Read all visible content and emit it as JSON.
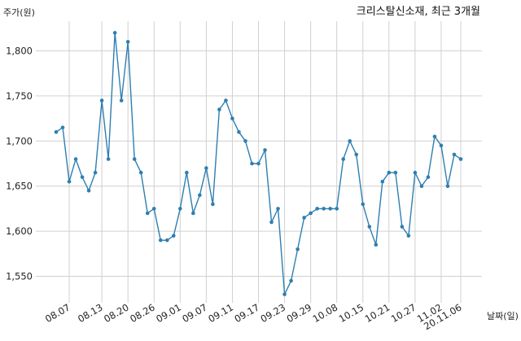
{
  "chart_data": {
    "type": "line",
    "title": "크리스탈신소재, 최근 3개월",
    "ylabel": "주가(원)",
    "xlabel": "날짜(일)",
    "ylim": [
      1520,
      1840
    ],
    "yticks": [
      1550,
      1600,
      1650,
      1700,
      1750,
      1800
    ],
    "ytick_labels": [
      "1,550",
      "1,600",
      "1,650",
      "1,700",
      "1,750",
      "1,800"
    ],
    "xtick_labels": [
      "08.07",
      "08.13",
      "08.20",
      "08.26",
      "09.01",
      "09.07",
      "09.11",
      "09.17",
      "09.23",
      "09.29",
      "10.08",
      "10.15",
      "10.21",
      "10.27",
      "11.02",
      "20.11.06"
    ],
    "xtick_index": [
      2,
      7,
      11,
      15,
      19,
      23,
      27,
      31,
      35,
      39,
      43,
      47,
      51,
      55,
      59,
      62
    ],
    "grid": true,
    "line_color": "#2e7fb1",
    "series": [
      {
        "values": [
          1710,
          1715,
          1655,
          1680,
          1660,
          1645,
          1665,
          1745,
          1680,
          1820,
          1745,
          1810,
          1680,
          1665,
          1620,
          1625,
          1590,
          1590,
          1595,
          1625,
          1665,
          1620,
          1640,
          1670,
          1630,
          1735,
          1745,
          1725,
          1710,
          1700,
          1675,
          1675,
          1690,
          1610,
          1625,
          1530,
          1545,
          1580,
          1615,
          1620,
          1625,
          1625,
          1625,
          1625,
          1680,
          1700,
          1685,
          1630,
          1605,
          1585,
          1655,
          1665,
          1665,
          1605,
          1595,
          1665,
          1650,
          1660,
          1705,
          1695,
          1650,
          1685,
          1680
        ]
      }
    ]
  }
}
